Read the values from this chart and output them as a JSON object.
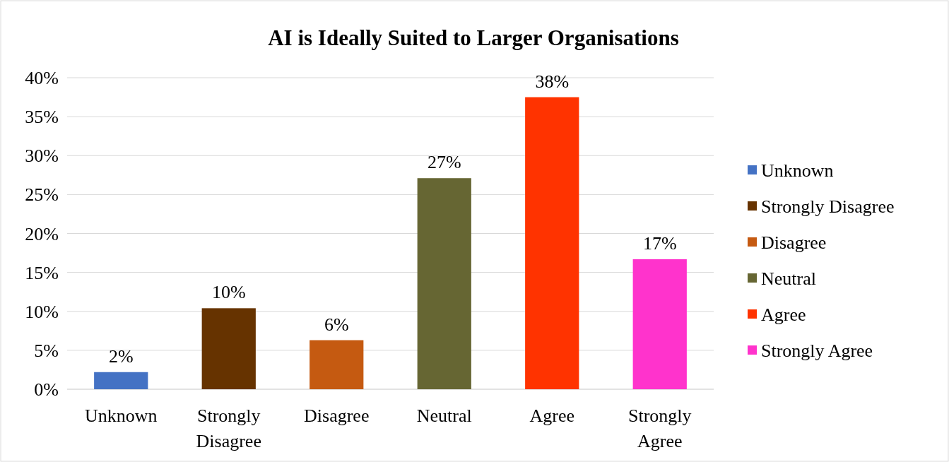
{
  "chart_data": {
    "type": "bar",
    "title": "AI is Ideally Suited to Larger Organisations",
    "categories": [
      "Unknown",
      "Strongly Disagree",
      "Disagree",
      "Neutral",
      "Agree",
      "Strongly Agree"
    ],
    "series": [
      {
        "name": "Unknown",
        "color": "#4472c4",
        "values": [
          2.2,
          null,
          null,
          null,
          null,
          null
        ],
        "value_labels": [
          "2%",
          null,
          null,
          null,
          null,
          null
        ]
      },
      {
        "name": "Strongly Disagree",
        "color": "#663300",
        "values": [
          null,
          10.4,
          null,
          null,
          null,
          null
        ],
        "value_labels": [
          null,
          "10%",
          null,
          null,
          null,
          null
        ]
      },
      {
        "name": "Disagree",
        "color": "#c55a11",
        "values": [
          null,
          null,
          6.3,
          null,
          null,
          null
        ],
        "value_labels": [
          null,
          null,
          "6%",
          null,
          null,
          null
        ]
      },
      {
        "name": "Neutral",
        "color": "#666633",
        "values": [
          null,
          null,
          null,
          27.1,
          null,
          null
        ],
        "value_labels": [
          null,
          null,
          null,
          "27%",
          null,
          null
        ]
      },
      {
        "name": "Agree",
        "color": "#ff3300",
        "values": [
          null,
          null,
          null,
          null,
          37.5,
          null
        ],
        "value_labels": [
          null,
          null,
          null,
          null,
          "38%",
          null
        ]
      },
      {
        "name": "Strongly Agree",
        "color": "#ff33cc",
        "values": [
          null,
          null,
          null,
          null,
          null,
          16.7
        ],
        "value_labels": [
          null,
          null,
          null,
          null,
          null,
          "17%"
        ]
      }
    ],
    "ylim": [
      0,
      40
    ],
    "yticks": [
      {
        "value": 0,
        "label": "0%"
      },
      {
        "value": 5,
        "label": "5%"
      },
      {
        "value": 10,
        "label": "10%"
      },
      {
        "value": 15,
        "label": "15%"
      },
      {
        "value": 20,
        "label": "20%"
      },
      {
        "value": 25,
        "label": "25%"
      },
      {
        "value": 30,
        "label": "30%"
      },
      {
        "value": 35,
        "label": "35%"
      },
      {
        "value": 40,
        "label": "40%"
      }
    ],
    "grid": "y",
    "legend": "right"
  }
}
